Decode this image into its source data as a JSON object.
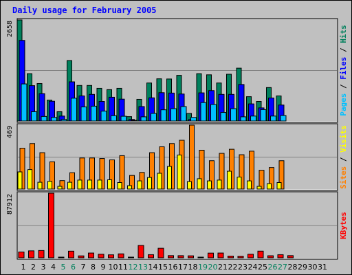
{
  "chart_data": {
    "type": "bar",
    "title": "Daily usage for February 2005",
    "days": [
      "1",
      "2",
      "3",
      "4",
      "5",
      "6",
      "7",
      "8",
      "9",
      "10",
      "11",
      "12",
      "13",
      "14",
      "15",
      "16",
      "17",
      "18",
      "19",
      "20",
      "21",
      "22",
      "23",
      "24",
      "25",
      "26",
      "27",
      "28",
      "29",
      "30",
      "31"
    ],
    "weekend_days": [
      "5",
      "6",
      "12",
      "13",
      "19",
      "20",
      "26",
      "27"
    ],
    "colors": {
      "hits": "#00805c",
      "files": "#0000ff",
      "pages": "#00c0ff",
      "visits": "#ffff00",
      "sites": "#ff8000",
      "kbytes": "#ff0000",
      "weekday_label": "#000000",
      "weekend_label": "#00805c"
    },
    "panels": [
      {
        "id": "hits-files-pages",
        "ymax_label": "2658",
        "ymax": 2658,
        "legend": [
          {
            "text": "Pages",
            "color": "#00c0ff"
          },
          {
            "text": " / ",
            "color": "#000000"
          },
          {
            "text": "Files",
            "color": "#0000ff"
          },
          {
            "text": " / ",
            "color": "#000000"
          },
          {
            "text": "Hits",
            "color": "#00805c"
          }
        ],
        "series": [
          {
            "name": "Hits",
            "color": "#00805c",
            "values": [
              2658,
              1245,
              985,
              550,
              245,
              1590,
              935,
              935,
              860,
              825,
              860,
              115,
              570,
              1000,
              1110,
              1105,
              1200,
              200,
              1245,
              1215,
              1000,
              1230,
              1390,
              640,
              515,
              880,
              660,
              0,
              0,
              0,
              0
            ]
          },
          {
            "name": "Files",
            "color": "#0000ff",
            "values": [
              2120,
              930,
              720,
              520,
              130,
              1030,
              660,
              700,
              515,
              625,
              575,
              40,
              380,
              610,
              745,
              735,
              710,
              40,
              740,
              800,
              700,
              700,
              960,
              450,
              345,
              605,
              420,
              0,
              0,
              0,
              0
            ]
          },
          {
            "name": "Pages",
            "color": "#00c0ff",
            "values": [
              975,
              245,
              120,
              95,
              40,
              600,
              370,
              390,
              260,
              140,
              125,
              15,
              110,
              200,
              295,
              325,
              380,
              95,
              485,
              435,
              225,
              325,
              110,
              130,
              300,
              130,
              145,
              0,
              0,
              0,
              0
            ]
          }
        ]
      },
      {
        "id": "visits-sites",
        "ymax_label": "469",
        "ymax": 469,
        "legend": [
          {
            "text": "Sites",
            "color": "#ff8000"
          },
          {
            "text": " / ",
            "color": "#000000"
          },
          {
            "text": "Visits",
            "color": "#ffff00"
          }
        ],
        "series": [
          {
            "name": "Sites",
            "color": "#ff8000",
            "values": [
              300,
              334,
              267,
              200,
              62,
              120,
              228,
              228,
              224,
              214,
              245,
              100,
              122,
              267,
              310,
              334,
              358,
              469,
              285,
              208,
              262,
              292,
              252,
              278,
              138,
              158,
              208,
              0,
              0,
              0,
              0
            ]
          },
          {
            "name": "Visits",
            "color": "#ffff00",
            "values": [
              126,
              143,
              50,
              57,
              20,
              50,
              66,
              66,
              66,
              68,
              48,
              25,
              60,
              85,
              116,
              166,
              250,
              55,
              76,
              60,
              66,
              131,
              88,
              60,
              20,
              40,
              48,
              0,
              0,
              0,
              0
            ]
          }
        ]
      },
      {
        "id": "kbytes",
        "ymax_label": "87912",
        "ymax": 87912,
        "legend": [
          {
            "text": "KBytes",
            "color": "#ff0000"
          }
        ],
        "series": [
          {
            "name": "KBytes",
            "color": "#ff0000",
            "values": [
              7940,
              9500,
              9940,
              87912,
              880,
              9050,
              2650,
              6500,
              4950,
              4080,
              5400,
              180,
              16900,
              4270,
              13000,
              2950,
              2900,
              2700,
              170,
              6400,
              6500,
              2370,
              2100,
              4960,
              9100,
              2800,
              4270,
              2950,
              0,
              0,
              0
            ]
          }
        ]
      }
    ]
  }
}
